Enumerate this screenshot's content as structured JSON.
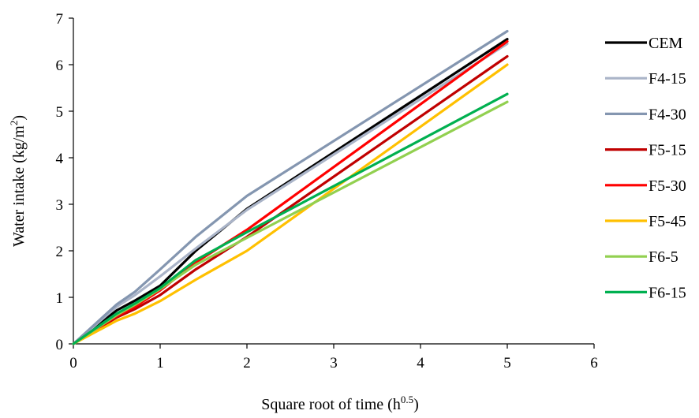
{
  "chart_data": {
    "type": "line",
    "title": "",
    "xlabel": "Square root of time (h",
    "xlabel_superscript": "0.5",
    "xlabel_suffix": ")",
    "ylabel": "Water intake (kg/m",
    "ylabel_superscript": "2",
    "ylabel_suffix": ")",
    "xlim": [
      0,
      6
    ],
    "ylim": [
      0,
      7
    ],
    "xticks": [
      "0",
      "1",
      "2",
      "3",
      "4",
      "5",
      "6"
    ],
    "yticks": [
      "0",
      "1",
      "2",
      "3",
      "4",
      "5",
      "6",
      "7"
    ],
    "grid": false,
    "legend_position": "right",
    "series": [
      {
        "name": "CEM",
        "color": "#000000",
        "x": [
          0,
          0.5,
          0.71,
          1,
          1.41,
          2,
          5
        ],
        "y": [
          0,
          0.72,
          0.93,
          1.25,
          2.0,
          2.9,
          6.55
        ]
      },
      {
        "name": "F4-15",
        "color": "#AAB4C8",
        "x": [
          0,
          0.5,
          0.71,
          1,
          1.41,
          2,
          5
        ],
        "y": [
          0,
          0.8,
          1.05,
          1.45,
          2.05,
          2.88,
          6.45
        ]
      },
      {
        "name": "F4-30",
        "color": "#8496B0",
        "x": [
          0,
          0.5,
          0.71,
          1,
          1.41,
          2,
          5
        ],
        "y": [
          0,
          0.85,
          1.12,
          1.6,
          2.3,
          3.18,
          6.72
        ]
      },
      {
        "name": "F5-15",
        "color": "#C00000",
        "x": [
          0,
          0.5,
          0.71,
          1,
          1.41,
          2,
          5
        ],
        "y": [
          0,
          0.57,
          0.75,
          1.05,
          1.6,
          2.3,
          6.18
        ]
      },
      {
        "name": "F5-30",
        "color": "#FF0000",
        "x": [
          0,
          0.5,
          0.71,
          1,
          1.41,
          2,
          5
        ],
        "y": [
          0,
          0.6,
          0.8,
          1.15,
          1.75,
          2.45,
          6.5
        ]
      },
      {
        "name": "F5-45",
        "color": "#FFC000",
        "x": [
          0,
          0.5,
          0.71,
          1,
          1.41,
          2,
          5
        ],
        "y": [
          0,
          0.5,
          0.65,
          0.92,
          1.38,
          2.0,
          6.0
        ]
      },
      {
        "name": "F6-5",
        "color": "#92D050",
        "x": [
          0,
          0.5,
          0.71,
          1,
          1.41,
          2,
          5
        ],
        "y": [
          0,
          0.62,
          0.84,
          1.18,
          1.7,
          2.28,
          5.2
        ]
      },
      {
        "name": "F6-15",
        "color": "#00B050",
        "x": [
          0,
          0.5,
          0.71,
          1,
          1.41,
          2,
          5
        ],
        "y": [
          0,
          0.65,
          0.87,
          1.2,
          1.8,
          2.4,
          5.37
        ]
      }
    ]
  }
}
